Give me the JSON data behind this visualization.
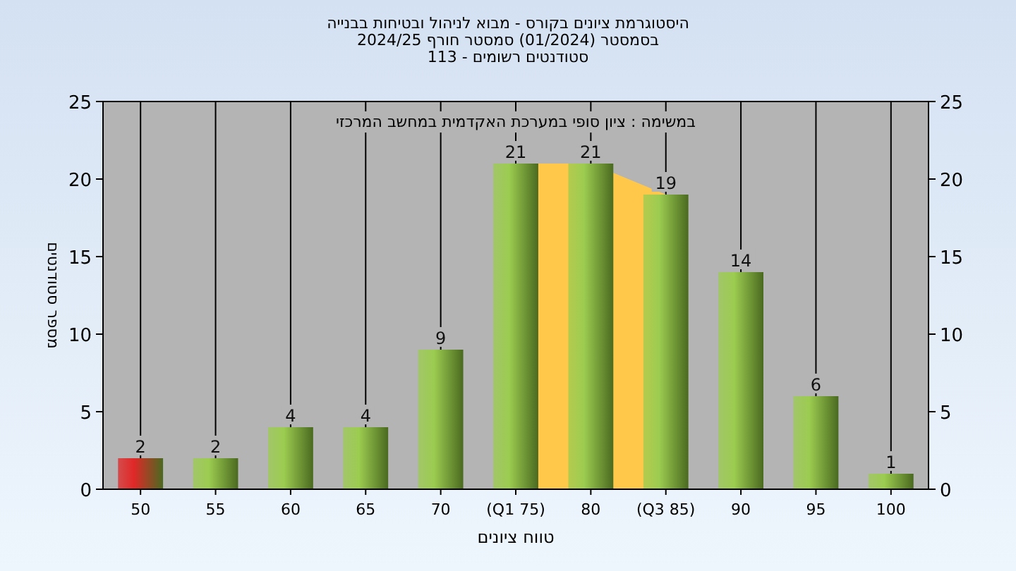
{
  "chart_data": {
    "type": "bar",
    "title": "היסטוגרמת ציונים בקורס - מבוא לניהול ובטיחות בבנייה",
    "subtitle": "בסמסטר  (01/2024)  סמסטר חורף 2024/25\nסטודנטים רשומים - 113",
    "xlabel": "טווח ציונים",
    "ylabel": "מספר סטודנטים",
    "annotations": [
      "במשימה : ציון סופי במערכת האקדמית במחשב המרכזי"
    ],
    "categories": [
      "50",
      "55",
      "60",
      "65",
      "70",
      "(Q1 75)",
      "80",
      "(Q3 85)",
      "90",
      "95",
      "100"
    ],
    "series": [
      {
        "type": "bar",
        "colors": [
          "#e02828",
          "#9ccc50",
          "#9ccc50",
          "#9ccc50",
          "#9ccc50",
          "#9ccc50",
          "#9ccc50",
          "#9ccc50",
          "#9ccc50",
          "#9ccc50",
          "#9ccc50"
        ],
        "values": [
          2,
          2,
          4,
          4,
          9,
          21,
          21,
          19,
          14,
          6,
          1
        ]
      }
    ],
    "ylim": [
      0,
      25
    ],
    "yticks": [
      0,
      5,
      10,
      15,
      20,
      25
    ],
    "y2lim": [
      0,
      25
    ],
    "y2ticks": [
      0,
      5,
      10,
      15,
      20,
      25
    ],
    "bands": [
      {
        "axis": "x",
        "from": "(Q1 75)",
        "to": "(Q3 85)",
        "color": "#ffc84a"
      }
    ],
    "grid": "x",
    "data_labels": true
  }
}
